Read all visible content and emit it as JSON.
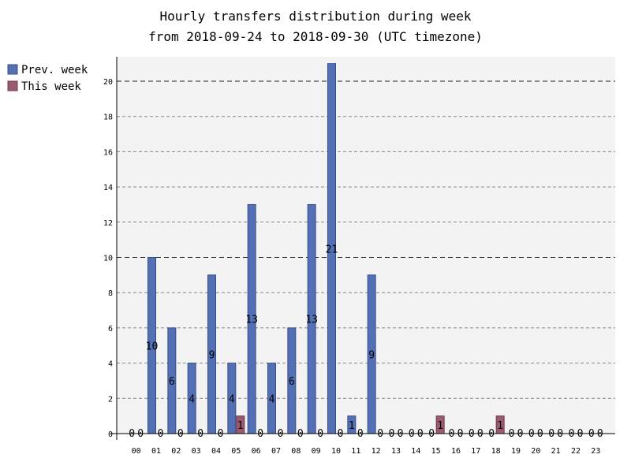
{
  "chart_data": {
    "type": "bar",
    "title": "Hourly transfers distribution during week",
    "subtitle": "from 2018-09-24 to 2018-09-30 (UTC timezone)",
    "xlabel": "",
    "ylabel": "",
    "categories": [
      "00",
      "01",
      "02",
      "03",
      "04",
      "05",
      "06",
      "07",
      "08",
      "09",
      "10",
      "11",
      "12",
      "13",
      "14",
      "15",
      "16",
      "17",
      "18",
      "19",
      "20",
      "21",
      "22",
      "23"
    ],
    "series": [
      {
        "name": "Prev. week",
        "color": "#5470b5",
        "values": [
          0,
          10,
          6,
          4,
          9,
          4,
          13,
          4,
          6,
          13,
          21,
          1,
          9,
          0,
          0,
          0,
          0,
          0,
          0,
          0,
          0,
          0,
          0,
          0
        ]
      },
      {
        "name": "This week",
        "color": "#9b5a6e",
        "values": [
          0,
          0,
          0,
          0,
          0,
          1,
          0,
          0,
          0,
          0,
          0,
          0,
          0,
          0,
          0,
          1,
          0,
          0,
          1,
          0,
          0,
          0,
          0,
          0
        ]
      }
    ],
    "ylim": [
      0,
      21
    ],
    "yticks": [
      0,
      2,
      4,
      6,
      8,
      10,
      12,
      14,
      16,
      18,
      20
    ],
    "grid": true,
    "legend": "top-left"
  }
}
